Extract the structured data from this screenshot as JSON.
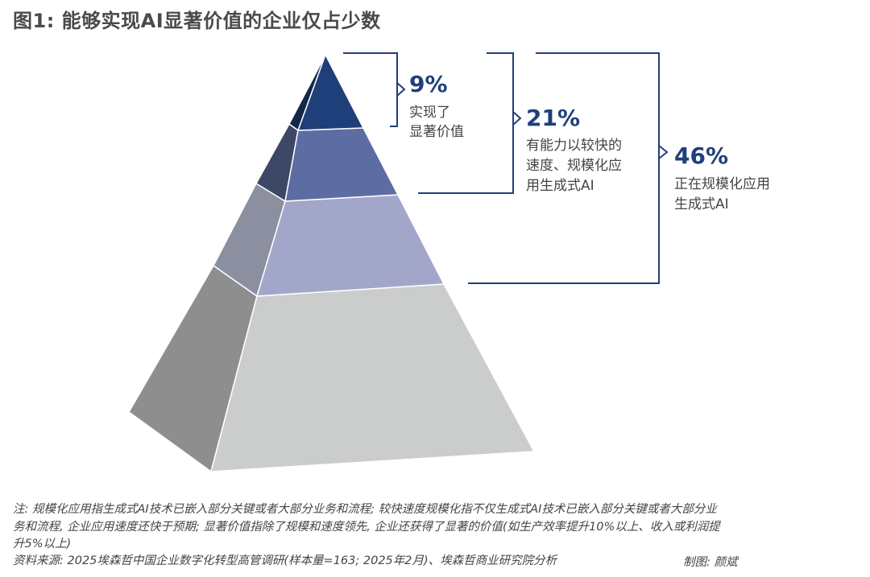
{
  "title": "图1: 能够实现AI显著价值的企业仅占少数",
  "chart_data": {
    "type": "pyramid",
    "series": [
      {
        "label_lines": [
          "实现了",
          "显著价值"
        ],
        "value": 9,
        "value_text": "9%"
      },
      {
        "label_lines": [
          "有能力以较快的",
          "速度、规模化应",
          "用生成式AI"
        ],
        "value": 21,
        "value_text": "21%"
      },
      {
        "label_lines": [
          "正在规模化应用",
          "生成式AI"
        ],
        "value": 46,
        "value_text": "46%"
      }
    ],
    "colors": {
      "tier1_front": "#1f3f7a",
      "tier1_side": "#14264a",
      "tier2_front": "#5d6da3",
      "tier2_side": "#3d4866",
      "tier3_front": "#a2a7c9",
      "tier3_side": "#8b8f9f",
      "tier4_front": "#cbcdcc",
      "tier4_side": "#8e8e8e",
      "bracket": "#1f3f7a"
    }
  },
  "notes": {
    "line1": "注: 规模化应用指生成式AI技术已嵌入部分关键或者大部分业务和流程; 较快速度规模化指不仅生成式AI技术已嵌入部分关键或者大部分业",
    "line2": "务和流程, 企业应用速度还快于预期; 显著价值指除了规模和速度领先, 企业还获得了显著的价值(如生产效率提升10%以上、收入或利润提",
    "line3": "升5%以上)",
    "source": "资料来源: 2025埃森哲中国企业数字化转型高管调研(样本量=163; 2025年2月)、埃森哲商业研究院分析",
    "credit": "制图: 颜斌"
  }
}
